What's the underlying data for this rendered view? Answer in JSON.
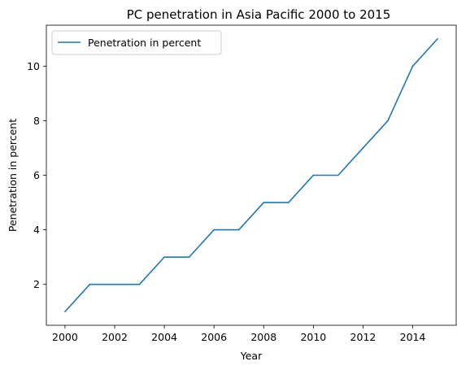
{
  "chart_data": {
    "type": "line",
    "title": "PC penetration in Asia Pacific 2000 to 2015",
    "xlabel": "Year",
    "ylabel": "Penetration in percent",
    "x": [
      2000,
      2001,
      2002,
      2003,
      2004,
      2005,
      2006,
      2007,
      2008,
      2009,
      2010,
      2011,
      2012,
      2013,
      2014,
      2015
    ],
    "series": [
      {
        "name": "Penetration in percent",
        "color": "#1f77b4",
        "values": [
          1,
          2,
          2,
          2,
          3,
          3,
          4,
          4,
          5,
          5,
          6,
          6,
          7,
          8,
          10,
          11
        ]
      }
    ],
    "xticks": [
      2000,
      2002,
      2004,
      2006,
      2008,
      2010,
      2012,
      2014
    ],
    "yticks": [
      2,
      4,
      6,
      8,
      10
    ],
    "xlim": [
      1999.25,
      2015.75
    ],
    "ylim": [
      0.5,
      11.5
    ],
    "grid": false,
    "legend_position": "top-left"
  }
}
